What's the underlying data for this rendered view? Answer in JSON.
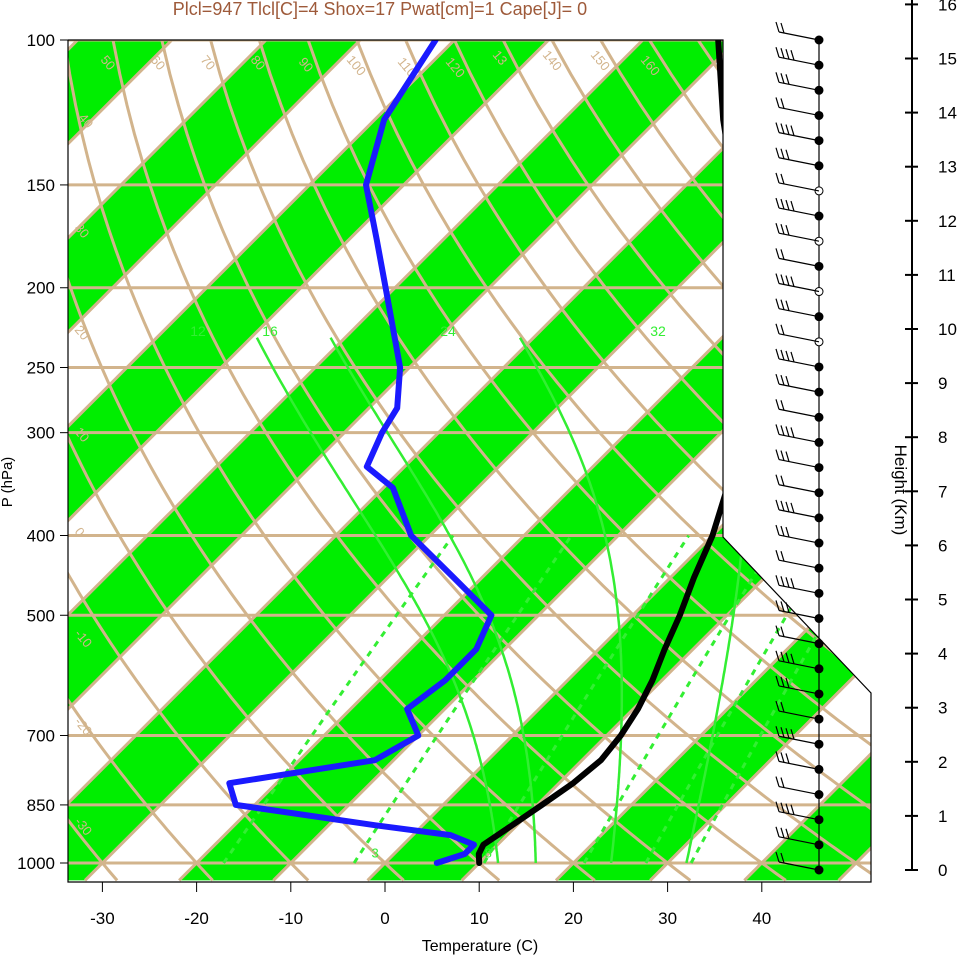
{
  "title": "Plcl=947 Tlcl[C]=4 Shox=17 Pwat[cm]=1 Cape[J]= 0",
  "colors": {
    "title": "#9e5a3a",
    "band": "#00ee00",
    "grid_tan": "#d2b48c",
    "mixing_ratio": "#33ee33",
    "moist_adiabat": "#33ee33",
    "dewpoint": "#1a1aff",
    "temperature": "#000000"
  },
  "chart_data": {
    "type": "skew-t",
    "xlabel": "Temperature (C)",
    "ylabel": "P (hPa)",
    "right_axis_label": "Height (Km)",
    "pressure_ticks": [
      100,
      150,
      200,
      250,
      300,
      400,
      500,
      700,
      850,
      1000
    ],
    "pressure_tick_labels": [
      "100",
      "150",
      "200",
      "250",
      "300",
      "400",
      "500",
      "700",
      "850",
      "1000"
    ],
    "temperature_ticks": [
      -30,
      -20,
      -10,
      0,
      10,
      20,
      30,
      40
    ],
    "temperature_tick_labels": [
      "-30",
      "-20",
      "-10",
      "0",
      "10",
      "20",
      "30",
      "40"
    ],
    "height_ticks_km": [
      0,
      1,
      2,
      3,
      4,
      5,
      6,
      7,
      8,
      9,
      10,
      11,
      12,
      13,
      14,
      15,
      16
    ],
    "height_tick_labels": [
      "0",
      "1",
      "2",
      "3",
      "4",
      "5",
      "6",
      "7",
      "8",
      "9",
      "10",
      "11",
      "12",
      "13",
      "14",
      "15",
      "16"
    ],
    "mixing_ratio_labels": [
      "3",
      "8"
    ],
    "moist_adiabat_labels": [
      "12",
      "16",
      "24",
      "32"
    ],
    "isotherm_labels": [
      "10",
      "20",
      "30",
      "10",
      "20",
      "30",
      "0"
    ],
    "dry_adiabat_labels": [
      "50",
      "60",
      "70",
      "80",
      "90",
      "100",
      "110",
      "120",
      "13",
      "140",
      "150",
      "160",
      "40",
      "30",
      "20",
      "10",
      "0",
      "-10",
      "-20",
      "-30"
    ],
    "series": [
      {
        "name": "temperature",
        "points": [
          [
            1000,
            10
          ],
          [
            975,
            9
          ],
          [
            950,
            8.5
          ],
          [
            925,
            9
          ],
          [
            900,
            9.5
          ],
          [
            850,
            10.5
          ],
          [
            800,
            11.5
          ],
          [
            750,
            12
          ],
          [
            700,
            11.5
          ],
          [
            650,
            10.5
          ],
          [
            600,
            9
          ],
          [
            550,
            7
          ],
          [
            500,
            5
          ],
          [
            450,
            2.5
          ],
          [
            400,
            0
          ],
          [
            350,
            -3.5
          ],
          [
            300,
            -7.5
          ],
          [
            250,
            -13
          ],
          [
            225,
            -18
          ],
          [
            200,
            -24
          ],
          [
            175,
            -29
          ],
          [
            150,
            -35
          ],
          [
            125,
            -43
          ],
          [
            100,
            -52
          ]
        ]
      },
      {
        "name": "dewpoint",
        "points": [
          [
            1000,
            5.5
          ],
          [
            975,
            7.5
          ],
          [
            950,
            7.5
          ],
          [
            925,
            4
          ],
          [
            900,
            -5
          ],
          [
            850,
            -22
          ],
          [
            800,
            -25
          ],
          [
            750,
            -12
          ],
          [
            700,
            -10
          ],
          [
            650,
            -14
          ],
          [
            600,
            -13
          ],
          [
            550,
            -13
          ],
          [
            500,
            -15
          ],
          [
            450,
            -23
          ],
          [
            400,
            -32
          ],
          [
            350,
            -39
          ],
          [
            330,
            -44
          ],
          [
            300,
            -46
          ],
          [
            280,
            -47
          ],
          [
            250,
            -51
          ],
          [
            200,
            -61
          ],
          [
            175,
            -67
          ],
          [
            150,
            -74
          ],
          [
            125,
            -79
          ],
          [
            100,
            -82
          ]
        ]
      }
    ],
    "wind_barbs_count": 34
  }
}
